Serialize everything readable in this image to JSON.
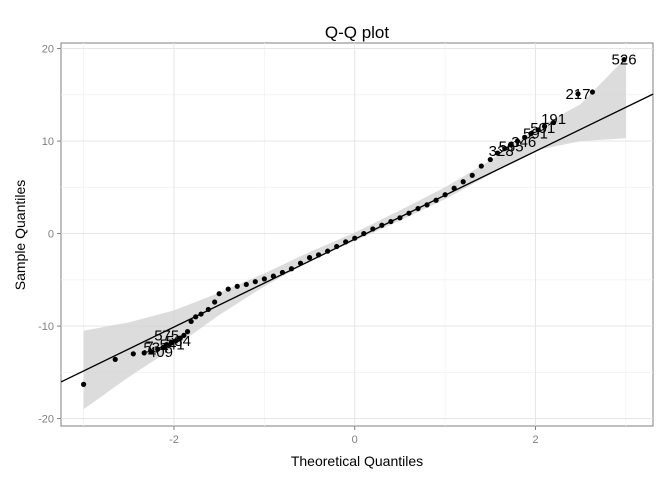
{
  "chart_data": {
    "type": "scatter",
    "title": "Q-Q plot",
    "xlabel": "Theoretical Quantiles",
    "ylabel": "Sample Quantiles",
    "xlim": [
      -3.25,
      3.3
    ],
    "ylim": [
      -20.8,
      20.6
    ],
    "x_ticks": [
      -2,
      0,
      2
    ],
    "y_ticks": [
      -20,
      -10,
      0,
      10,
      20
    ],
    "grid": true,
    "reference_line": {
      "slope": 4.75,
      "intercept": -0.6
    },
    "confidence_band": [
      [
        -3.0,
        -19.0,
        -10.5
      ],
      [
        -2.5,
        -15.5,
        -9.6
      ],
      [
        -2.0,
        -12.3,
        -8.3
      ],
      [
        -1.5,
        -8.8,
        -6.4
      ],
      [
        -1.0,
        -5.7,
        -4.3
      ],
      [
        -0.5,
        -3.0,
        -2.0
      ],
      [
        0.0,
        -0.8,
        0.1
      ],
      [
        0.5,
        1.4,
        2.5
      ],
      [
        1.0,
        3.7,
        5.0
      ],
      [
        1.5,
        6.4,
        7.9
      ],
      [
        2.0,
        9.0,
        11.3
      ],
      [
        2.5,
        10.0,
        14.0
      ],
      [
        3.0,
        10.3,
        19.0
      ]
    ],
    "points": [
      [
        -3.0,
        -16.3
      ],
      [
        -2.65,
        -13.6
      ],
      [
        -2.45,
        -13.0
      ],
      [
        -2.33,
        -12.9
      ],
      [
        -2.25,
        -12.8
      ],
      [
        -2.18,
        -12.5
      ],
      [
        -2.12,
        -12.3
      ],
      [
        -2.08,
        -12.0
      ],
      [
        -2.03,
        -11.8
      ],
      [
        -1.98,
        -11.6
      ],
      [
        -1.93,
        -11.3
      ],
      [
        -1.89,
        -11.0
      ],
      [
        -1.85,
        -10.6
      ],
      [
        -1.81,
        -9.5
      ],
      [
        -1.76,
        -9.0
      ],
      [
        -1.7,
        -8.7
      ],
      [
        -1.62,
        -8.2
      ],
      [
        -1.55,
        -7.4
      ],
      [
        -1.5,
        -6.5
      ],
      [
        -1.4,
        -6.0
      ],
      [
        -1.3,
        -5.7
      ],
      [
        -1.2,
        -5.5
      ],
      [
        -1.1,
        -5.2
      ],
      [
        -1.0,
        -4.9
      ],
      [
        -0.9,
        -4.6
      ],
      [
        -0.8,
        -4.2
      ],
      [
        -0.7,
        -3.8
      ],
      [
        -0.6,
        -3.2
      ],
      [
        -0.5,
        -2.6
      ],
      [
        -0.4,
        -2.3
      ],
      [
        -0.3,
        -1.9
      ],
      [
        -0.2,
        -1.4
      ],
      [
        -0.1,
        -0.9
      ],
      [
        0.0,
        -0.5
      ],
      [
        0.1,
        0.0
      ],
      [
        0.2,
        0.5
      ],
      [
        0.3,
        0.9
      ],
      [
        0.4,
        1.3
      ],
      [
        0.5,
        1.7
      ],
      [
        0.6,
        2.2
      ],
      [
        0.7,
        2.7
      ],
      [
        0.8,
        3.1
      ],
      [
        0.9,
        3.6
      ],
      [
        1.0,
        4.2
      ],
      [
        1.1,
        4.9
      ],
      [
        1.2,
        5.6
      ],
      [
        1.3,
        6.3
      ],
      [
        1.4,
        7.3
      ],
      [
        1.5,
        8.0
      ],
      [
        1.58,
        8.7
      ],
      [
        1.66,
        9.2
      ],
      [
        1.73,
        9.6
      ],
      [
        1.8,
        10.0
      ],
      [
        1.88,
        10.4
      ],
      [
        1.95,
        10.8
      ],
      [
        2.03,
        11.2
      ],
      [
        2.1,
        11.6
      ],
      [
        2.2,
        12.0
      ],
      [
        2.47,
        15.1
      ],
      [
        2.63,
        15.3
      ],
      [
        2.98,
        18.8
      ]
    ],
    "point_labels": [
      {
        "text": "526",
        "x": 2.98,
        "y": 18.8
      },
      {
        "text": "217",
        "x": 2.47,
        "y": 15.1
      },
      {
        "text": "191",
        "x": 2.2,
        "y": 12.4
      },
      {
        "text": "501",
        "x": 2.08,
        "y": 11.4
      },
      {
        "text": "591",
        "x": 2.0,
        "y": 10.8
      },
      {
        "text": "346",
        "x": 1.87,
        "y": 9.9
      },
      {
        "text": "565",
        "x": 1.73,
        "y": 9.4
      },
      {
        "text": "328",
        "x": 1.62,
        "y": 8.9
      },
      {
        "text": "575",
        "x": -2.08,
        "y": -11.0
      },
      {
        "text": "584",
        "x": -1.95,
        "y": -11.6
      },
      {
        "text": "541",
        "x": -2.02,
        "y": -12.0
      },
      {
        "text": "534",
        "x": -2.2,
        "y": -12.3
      },
      {
        "text": "7",
        "x": -2.27,
        "y": -12.2
      },
      {
        "text": "409",
        "x": -2.15,
        "y": -12.8
      }
    ]
  }
}
